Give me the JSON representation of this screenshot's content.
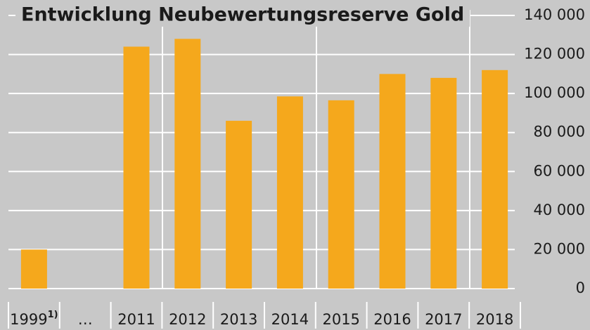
{
  "chart_data": {
    "type": "bar",
    "title": "Entwicklung Neubewertungsreserve Gold",
    "categories": [
      "1999",
      "…",
      "2011",
      "2012",
      "2013",
      "2014",
      "2015",
      "2016",
      "2017",
      "2018"
    ],
    "category_superscripts": [
      "1)",
      null,
      null,
      null,
      null,
      null,
      null,
      null,
      null,
      null
    ],
    "values": [
      20000,
      null,
      124000,
      128000,
      86000,
      98500,
      96500,
      110000,
      108000,
      112000
    ],
    "color": "#f5a81c",
    "ylim": [
      0,
      140000
    ],
    "yticks": [
      0,
      {
        "value": 20000,
        "label": "20 000"
      },
      {
        "value": 40000,
        "label": "40 000"
      },
      {
        "value": 60000,
        "label": "60 000"
      },
      {
        "value": 80000,
        "label": "80 000"
      },
      {
        "value": 100000,
        "label": "100 000"
      },
      {
        "value": 120000,
        "label": "120 000"
      },
      {
        "value": 140000,
        "label": "140 000"
      }
    ],
    "grid": true
  }
}
